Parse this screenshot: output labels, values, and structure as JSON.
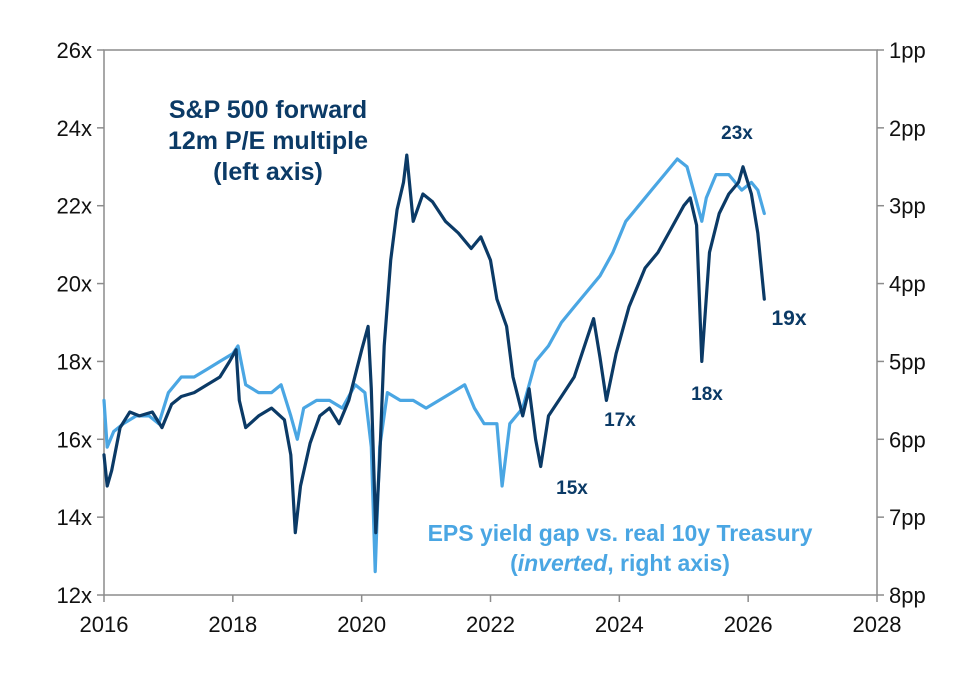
{
  "chart_data": {
    "type": "line",
    "title": "",
    "x_range": [
      2016,
      2028
    ],
    "x_ticks": [
      "2016",
      "2018",
      "2020",
      "2022",
      "2024",
      "2026",
      "2028"
    ],
    "left_axis": {
      "range": [
        12,
        26
      ],
      "ticks": [
        "12x",
        "14x",
        "16x",
        "18x",
        "20x",
        "22x",
        "24x",
        "26x"
      ]
    },
    "right_axis": {
      "range": [
        1,
        8
      ],
      "inverted": true,
      "ticks": [
        "1pp",
        "2pp",
        "3pp",
        "4pp",
        "5pp",
        "6pp",
        "7pp",
        "8pp"
      ]
    },
    "grid": false,
    "series": [
      {
        "key": "pe",
        "axis": "left",
        "color": "#0b3a66",
        "points": [
          [
            2016.0,
            15.6
          ],
          [
            2016.05,
            14.8
          ],
          [
            2016.12,
            15.2
          ],
          [
            2016.25,
            16.3
          ],
          [
            2016.4,
            16.7
          ],
          [
            2016.55,
            16.6
          ],
          [
            2016.75,
            16.7
          ],
          [
            2016.9,
            16.3
          ],
          [
            2017.05,
            16.9
          ],
          [
            2017.2,
            17.1
          ],
          [
            2017.4,
            17.2
          ],
          [
            2017.6,
            17.4
          ],
          [
            2017.8,
            17.6
          ],
          [
            2017.95,
            18.0
          ],
          [
            2018.05,
            18.3
          ],
          [
            2018.1,
            17.0
          ],
          [
            2018.2,
            16.3
          ],
          [
            2018.4,
            16.6
          ],
          [
            2018.6,
            16.8
          ],
          [
            2018.8,
            16.5
          ],
          [
            2018.9,
            15.6
          ],
          [
            2018.97,
            13.6
          ],
          [
            2019.05,
            14.8
          ],
          [
            2019.2,
            15.9
          ],
          [
            2019.35,
            16.6
          ],
          [
            2019.5,
            16.8
          ],
          [
            2019.65,
            16.4
          ],
          [
            2019.8,
            17.0
          ],
          [
            2020.0,
            18.3
          ],
          [
            2020.1,
            18.9
          ],
          [
            2020.15,
            17.3
          ],
          [
            2020.22,
            13.6
          ],
          [
            2020.28,
            15.5
          ],
          [
            2020.35,
            18.4
          ],
          [
            2020.45,
            20.6
          ],
          [
            2020.55,
            21.9
          ],
          [
            2020.65,
            22.6
          ],
          [
            2020.7,
            23.3
          ],
          [
            2020.8,
            21.6
          ],
          [
            2020.95,
            22.3
          ],
          [
            2021.1,
            22.1
          ],
          [
            2021.3,
            21.6
          ],
          [
            2021.5,
            21.3
          ],
          [
            2021.7,
            20.9
          ],
          [
            2021.85,
            21.2
          ],
          [
            2022.0,
            20.6
          ],
          [
            2022.1,
            19.6
          ],
          [
            2022.25,
            18.9
          ],
          [
            2022.35,
            17.6
          ],
          [
            2022.5,
            16.6
          ],
          [
            2022.6,
            17.3
          ],
          [
            2022.7,
            16.0
          ],
          [
            2022.78,
            15.3
          ],
          [
            2022.9,
            16.6
          ],
          [
            2023.1,
            17.1
          ],
          [
            2023.3,
            17.6
          ],
          [
            2023.5,
            18.6
          ],
          [
            2023.6,
            19.1
          ],
          [
            2023.7,
            18.1
          ],
          [
            2023.8,
            17.0
          ],
          [
            2023.95,
            18.2
          ],
          [
            2024.15,
            19.4
          ],
          [
            2024.4,
            20.4
          ],
          [
            2024.6,
            20.8
          ],
          [
            2024.8,
            21.4
          ],
          [
            2025.0,
            22.0
          ],
          [
            2025.1,
            22.2
          ],
          [
            2025.2,
            21.5
          ],
          [
            2025.28,
            18.0
          ],
          [
            2025.4,
            20.8
          ],
          [
            2025.55,
            21.8
          ],
          [
            2025.7,
            22.3
          ],
          [
            2025.85,
            22.6
          ],
          [
            2025.92,
            23.0
          ],
          [
            2026.05,
            22.3
          ],
          [
            2026.15,
            21.3
          ],
          [
            2026.25,
            19.6
          ]
        ]
      },
      {
        "key": "gap",
        "axis": "right",
        "color": "#4aa6e3",
        "points": [
          [
            2016.0,
            5.5
          ],
          [
            2016.05,
            6.1
          ],
          [
            2016.15,
            5.9
          ],
          [
            2016.3,
            5.8
          ],
          [
            2016.5,
            5.7
          ],
          [
            2016.7,
            5.7
          ],
          [
            2016.85,
            5.8
          ],
          [
            2017.0,
            5.4
          ],
          [
            2017.2,
            5.2
          ],
          [
            2017.4,
            5.2
          ],
          [
            2017.6,
            5.1
          ],
          [
            2017.8,
            5.0
          ],
          [
            2018.0,
            4.9
          ],
          [
            2018.08,
            4.8
          ],
          [
            2018.2,
            5.3
          ],
          [
            2018.4,
            5.4
          ],
          [
            2018.6,
            5.4
          ],
          [
            2018.75,
            5.3
          ],
          [
            2018.9,
            5.7
          ],
          [
            2019.0,
            6.0
          ],
          [
            2019.1,
            5.6
          ],
          [
            2019.3,
            5.5
          ],
          [
            2019.5,
            5.5
          ],
          [
            2019.7,
            5.6
          ],
          [
            2019.9,
            5.3
          ],
          [
            2020.05,
            5.4
          ],
          [
            2020.15,
            6.1
          ],
          [
            2020.21,
            7.7
          ],
          [
            2020.28,
            6.1
          ],
          [
            2020.4,
            5.4
          ],
          [
            2020.6,
            5.5
          ],
          [
            2020.8,
            5.5
          ],
          [
            2021.0,
            5.6
          ],
          [
            2021.2,
            5.5
          ],
          [
            2021.4,
            5.4
          ],
          [
            2021.6,
            5.3
          ],
          [
            2021.75,
            5.6
          ],
          [
            2021.9,
            5.8
          ],
          [
            2022.1,
            5.8
          ],
          [
            2022.18,
            6.6
          ],
          [
            2022.3,
            5.8
          ],
          [
            2022.5,
            5.6
          ],
          [
            2022.7,
            5.0
          ],
          [
            2022.9,
            4.8
          ],
          [
            2023.1,
            4.5
          ],
          [
            2023.3,
            4.3
          ],
          [
            2023.5,
            4.1
          ],
          [
            2023.7,
            3.9
          ],
          [
            2023.9,
            3.6
          ],
          [
            2024.1,
            3.2
          ],
          [
            2024.3,
            3.0
          ],
          [
            2024.5,
            2.8
          ],
          [
            2024.7,
            2.6
          ],
          [
            2024.9,
            2.4
          ],
          [
            2025.05,
            2.5
          ],
          [
            2025.15,
            2.8
          ],
          [
            2025.28,
            3.2
          ],
          [
            2025.35,
            2.9
          ],
          [
            2025.5,
            2.6
          ],
          [
            2025.7,
            2.6
          ],
          [
            2025.9,
            2.8
          ],
          [
            2026.05,
            2.7
          ],
          [
            2026.15,
            2.8
          ],
          [
            2026.25,
            3.1
          ]
        ]
      }
    ],
    "annotations": [
      {
        "key": "pe_label",
        "lines": [
          "S&P 500 forward",
          "12m P/E multiple",
          "(left axis)"
        ],
        "color": "#0b3a66"
      },
      {
        "key": "gap_label",
        "lines": [
          "EPS yield gap vs. real 10y Treasury"
        ],
        "line2_italic": "inverted",
        "line2_rest": ", right axis)",
        "line2_open": "(",
        "color": "#4aa6e3"
      },
      {
        "key": "l23",
        "text": "23x",
        "color": "#0b3a66"
      },
      {
        "key": "l19",
        "text": "19x",
        "color": "#0b3a66"
      },
      {
        "key": "l18",
        "text": "18x",
        "color": "#0b3a66"
      },
      {
        "key": "l17",
        "text": "17x",
        "color": "#0b3a66"
      },
      {
        "key": "l15",
        "text": "15x",
        "color": "#0b3a66"
      }
    ]
  }
}
